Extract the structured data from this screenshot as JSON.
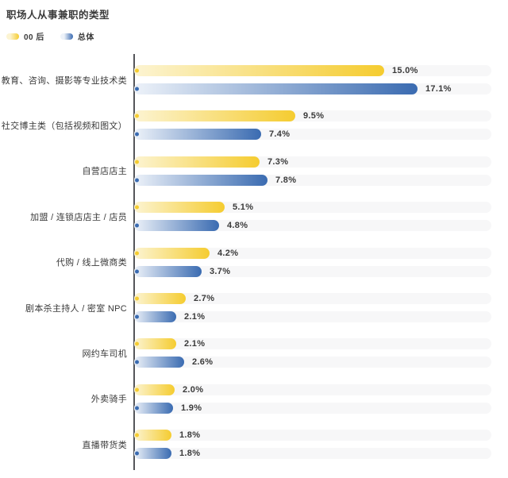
{
  "title": "职场人从事兼职的类型",
  "accent_colors": {
    "yellow": "#F5CC30",
    "yellow_light": "#FCF4D2",
    "blue": "#3A6BB1",
    "blue_light": "#EDF2F9",
    "track": "#F7F7F8",
    "axis": "#55565A",
    "text": "#3A3A3A"
  },
  "chart_data": {
    "type": "bar",
    "orientation": "horizontal",
    "title": "职场人从事兼职的类型",
    "unit": "%",
    "legend_position": "top-left",
    "gridlines": false,
    "value_axis": {
      "min": 0,
      "tick_labels_shown": false
    },
    "categories": [
      "教育、咨询、摄影等专业技术类",
      "社交博主类（包括视频和图文）",
      "自营店店主",
      "加盟 / 连锁店店主 / 店员",
      "代购 / 线上微商类",
      "剧本杀主持人 / 密室 NPC",
      "网约车司机",
      "外卖骑手",
      "直播带货类"
    ],
    "series": [
      {
        "name": "00 后",
        "color_from": "#FCF4D2",
        "color_to": "#F5CC30",
        "values": [
          15.0,
          9.5,
          7.3,
          5.1,
          4.2,
          2.7,
          2.1,
          2.0,
          1.8
        ],
        "labels": [
          "15.0%",
          "9.5%",
          "7.3%",
          "5.1%",
          "4.2%",
          "2.7%",
          "2.1%",
          "2.0%",
          "1.8%"
        ]
      },
      {
        "name": "总体",
        "color_from": "#EDF2F9",
        "color_to": "#3A6BB1",
        "values": [
          17.1,
          7.4,
          7.8,
          4.8,
          3.7,
          2.1,
          2.6,
          1.9,
          1.8
        ],
        "labels": [
          "17.1%",
          "7.4%",
          "7.8%",
          "4.8%",
          "3.7%",
          "2.1%",
          "2.6%",
          "1.9%",
          "1.8%"
        ]
      }
    ]
  },
  "layout_note": "grouped horizontal bars, yellow series above blue series in each group"
}
